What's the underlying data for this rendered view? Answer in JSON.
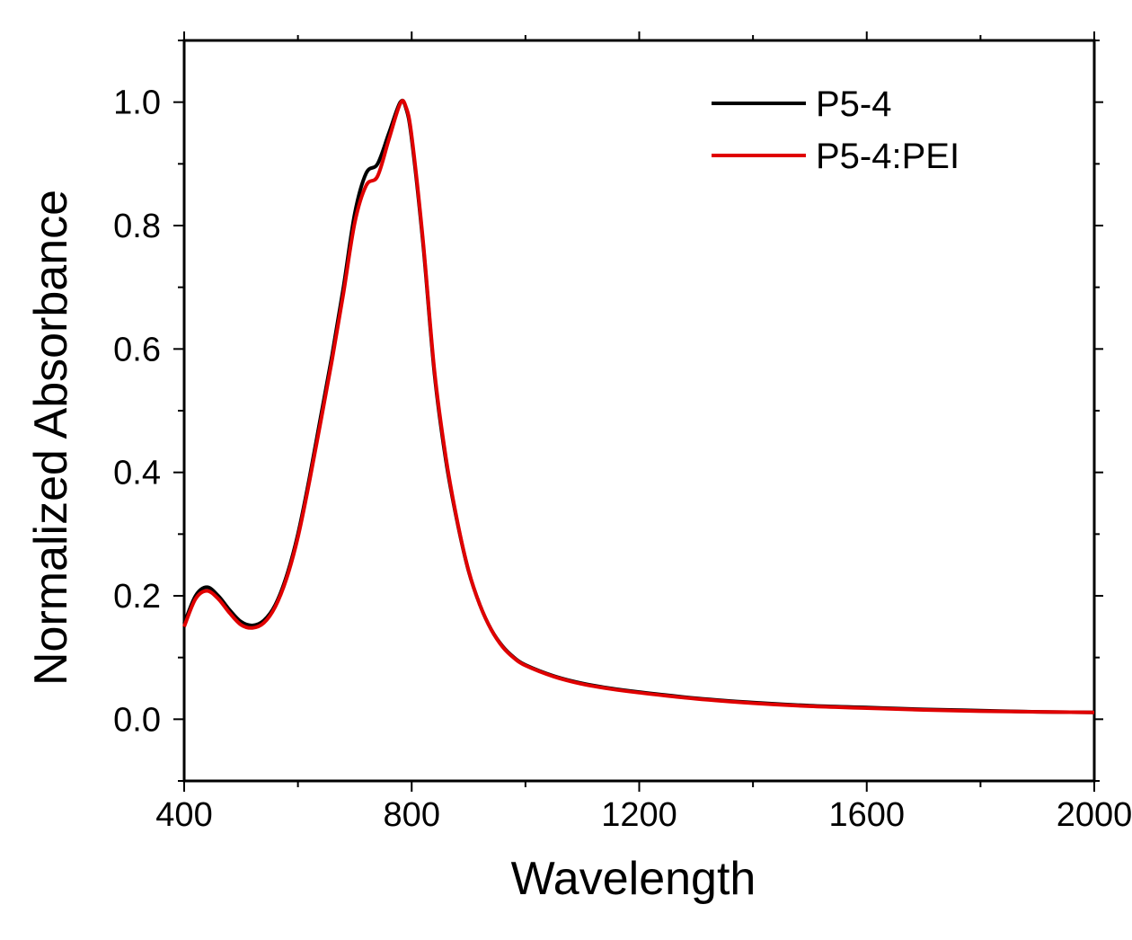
{
  "chart_data": {
    "type": "line",
    "title": "",
    "xlabel": "Wavelength",
    "ylabel": "Normalized Absorbance",
    "xlim": [
      400,
      2000
    ],
    "ylim": [
      -0.1,
      1.1
    ],
    "xticks": [
      400,
      800,
      1200,
      1600,
      2000
    ],
    "xtick_labels": [
      "400",
      "800",
      "1200",
      "1600",
      "2000"
    ],
    "yticks": [
      0.0,
      0.2,
      0.4,
      0.6,
      0.8,
      1.0
    ],
    "ytick_labels": [
      "0.0",
      "0.2",
      "0.4",
      "0.6",
      "0.8",
      "1.0"
    ],
    "grid": false,
    "legend_position": "top-right",
    "series": [
      {
        "name": "P5-4",
        "color": "#000000",
        "x": [
          400,
          420,
          440,
          460,
          480,
          500,
          520,
          540,
          560,
          580,
          600,
          620,
          640,
          660,
          680,
          700,
          720,
          740,
          760,
          780,
          790,
          800,
          820,
          840,
          860,
          880,
          900,
          920,
          940,
          960,
          980,
          1000,
          1050,
          1100,
          1150,
          1200,
          1300,
          1400,
          1500,
          1600,
          1700,
          1800,
          1900,
          2000
        ],
        "y": [
          0.155,
          0.2,
          0.214,
          0.2,
          0.177,
          0.158,
          0.152,
          0.16,
          0.185,
          0.232,
          0.3,
          0.39,
          0.49,
          0.59,
          0.7,
          0.82,
          0.885,
          0.9,
          0.95,
          1.0,
          0.99,
          0.94,
          0.77,
          0.56,
          0.42,
          0.32,
          0.24,
          0.185,
          0.145,
          0.118,
          0.1,
          0.088,
          0.07,
          0.058,
          0.05,
          0.044,
          0.034,
          0.027,
          0.022,
          0.019,
          0.016,
          0.014,
          0.012,
          0.011
        ]
      },
      {
        "name": "P5-4:PEI",
        "color": "#e00000",
        "x": [
          400,
          420,
          440,
          460,
          480,
          500,
          520,
          540,
          560,
          580,
          600,
          620,
          640,
          660,
          680,
          700,
          720,
          740,
          760,
          780,
          790,
          800,
          820,
          840,
          860,
          880,
          900,
          920,
          940,
          960,
          980,
          1000,
          1050,
          1100,
          1150,
          1200,
          1300,
          1400,
          1500,
          1600,
          1700,
          1800,
          1900,
          2000
        ],
        "y": [
          0.15,
          0.195,
          0.208,
          0.195,
          0.172,
          0.153,
          0.148,
          0.156,
          0.182,
          0.228,
          0.295,
          0.384,
          0.482,
          0.582,
          0.69,
          0.805,
          0.865,
          0.88,
          0.94,
          0.998,
          0.992,
          0.945,
          0.775,
          0.565,
          0.425,
          0.322,
          0.241,
          0.185,
          0.145,
          0.117,
          0.099,
          0.087,
          0.069,
          0.057,
          0.049,
          0.043,
          0.033,
          0.026,
          0.021,
          0.018,
          0.015,
          0.013,
          0.012,
          0.011
        ]
      }
    ]
  }
}
